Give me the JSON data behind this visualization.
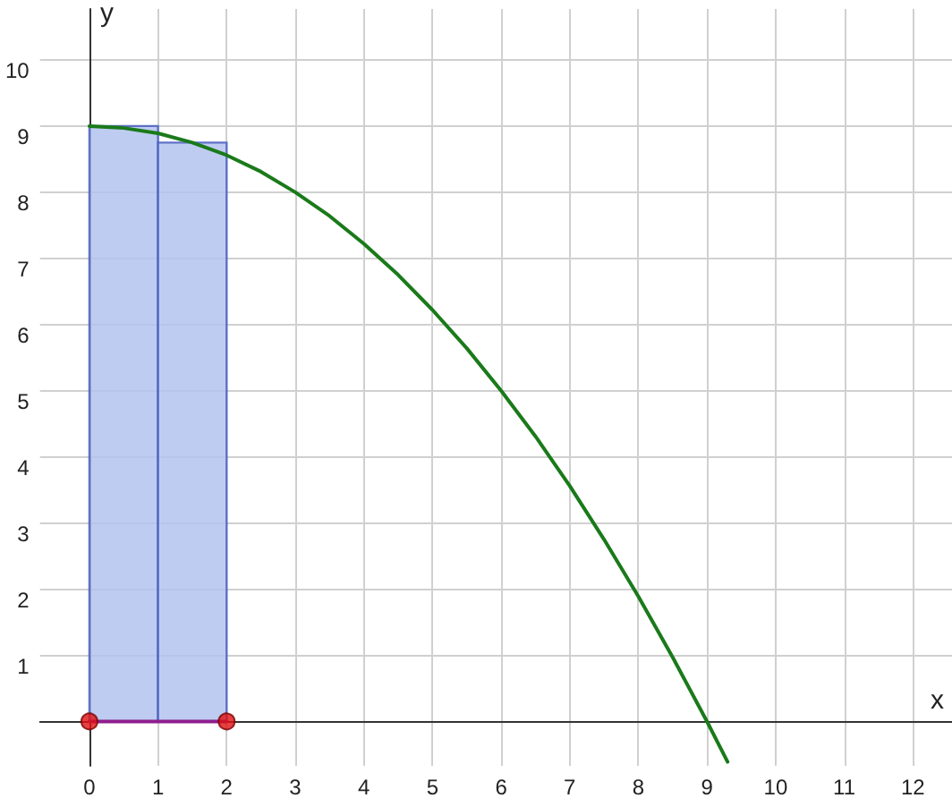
{
  "chart_data": {
    "type": "line",
    "xlabel": "x",
    "ylabel": "y",
    "xlim": [
      -0.72,
      12.57
    ],
    "ylim": [
      -0.67,
      10.77
    ],
    "xticks": [
      0,
      1,
      2,
      3,
      4,
      5,
      6,
      7,
      8,
      9,
      10,
      11,
      12
    ],
    "yticks": [
      {
        "value": 0,
        "label": null
      },
      1,
      2,
      3,
      4,
      5,
      6,
      7,
      8,
      9,
      10
    ],
    "grid": true,
    "series": [
      {
        "type": "histogram",
        "bins": [
          0,
          1,
          2
        ],
        "values": [
          9,
          8.75
        ],
        "color": "#b4c3ef"
      },
      {
        "color": "#1a7a1a",
        "marker": "none",
        "x": [
          0,
          0.5,
          1,
          1.5,
          2,
          2.5,
          3,
          3.5,
          4,
          4.5,
          5,
          5.5,
          6,
          6.5,
          7,
          7.5,
          8,
          8.5,
          9,
          9.3
        ],
        "values": [
          9,
          8.97,
          8.89,
          8.75,
          8.56,
          8.31,
          8,
          7.64,
          7.22,
          6.75,
          6.22,
          5.64,
          5,
          4.31,
          3.56,
          2.75,
          1.89,
          0.97,
          0,
          -0.61
        ]
      },
      {
        "color": "#8e1e8e",
        "marker": "none",
        "x": [
          0,
          2
        ],
        "values": [
          0,
          0
        ]
      },
      {
        "type": "scatter",
        "color": "#e01010",
        "marker": "circle",
        "x": [
          0,
          2
        ],
        "values": [
          0,
          0
        ]
      }
    ]
  }
}
